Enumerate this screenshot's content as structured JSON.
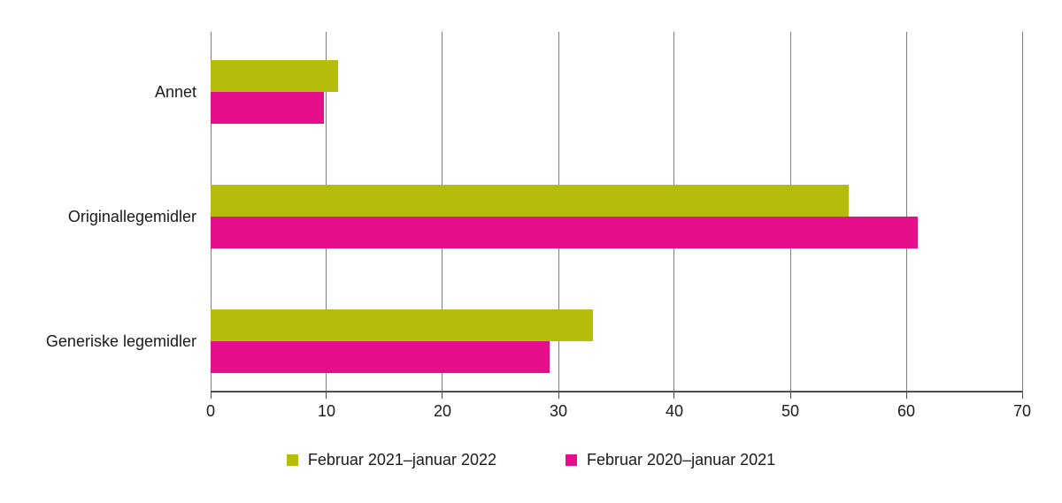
{
  "chart_data": {
    "type": "bar",
    "orientation": "horizontal",
    "title": "",
    "xlabel": "",
    "ylabel": "",
    "categories": [
      "Annet",
      "Originallegemidler",
      "Generiske legemidler"
    ],
    "series": [
      {
        "name": "Februar 2021–januar 2022",
        "color": "#b5bd0b",
        "values": [
          11,
          55,
          33
        ]
      },
      {
        "name": "Februar 2020–januar 2021",
        "color": "#e60f8b",
        "values": [
          9.8,
          61,
          29.2
        ]
      }
    ],
    "xlim": [
      0,
      70
    ],
    "xticks": [
      0,
      10,
      20,
      30,
      40,
      50,
      60,
      70
    ],
    "grid": true,
    "gridline_color": "#7f7f7f",
    "axis_color": "#4d4d4d",
    "legend_position": "bottom"
  }
}
